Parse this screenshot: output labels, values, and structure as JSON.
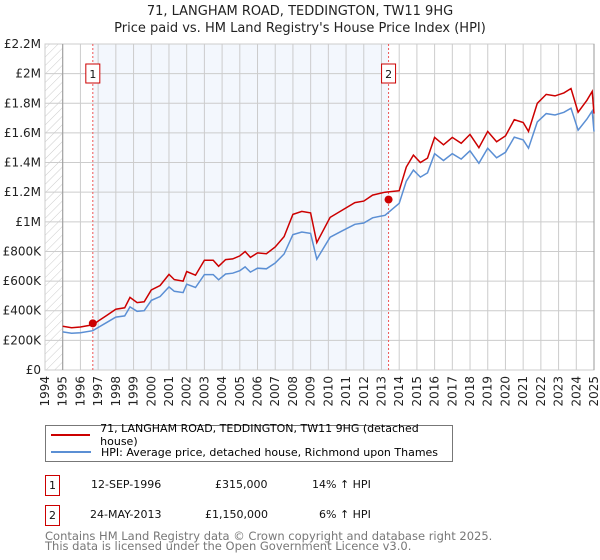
{
  "title": "71, LANGHAM ROAD, TEDDINGTON, TW11 9HG",
  "subtitle": "Price paid vs. HM Land Registry's House Price Index (HPI)",
  "chart_data": {
    "type": "line",
    "ylim": [
      0,
      2200000
    ],
    "xlim": [
      1994,
      2025
    ],
    "yticks": [
      {
        "v": 0,
        "label": "£0"
      },
      {
        "v": 200000,
        "label": "£200K"
      },
      {
        "v": 400000,
        "label": "£400K"
      },
      {
        "v": 600000,
        "label": "£600K"
      },
      {
        "v": 800000,
        "label": "£800K"
      },
      {
        "v": 1000000,
        "label": "£1M"
      },
      {
        "v": 1200000,
        "label": "£1.2M"
      },
      {
        "v": 1400000,
        "label": "£1.4M"
      },
      {
        "v": 1600000,
        "label": "£1.6M"
      },
      {
        "v": 1800000,
        "label": "£1.8M"
      },
      {
        "v": 2000000,
        "label": "£2M"
      },
      {
        "v": 2200000,
        "label": "£2.2M"
      }
    ],
    "xticks": [
      "1994",
      "1995",
      "1996",
      "1997",
      "1998",
      "1999",
      "2000",
      "2001",
      "2002",
      "2003",
      "2004",
      "2005",
      "2006",
      "2007",
      "2008",
      "2009",
      "2010",
      "2011",
      "2012",
      "2013",
      "2014",
      "2015",
      "2016",
      "2017",
      "2018",
      "2019",
      "2020",
      "2021",
      "2022",
      "2023",
      "2024",
      "2025"
    ],
    "grid": true,
    "x": [
      1995,
      1995.5,
      1996,
      1996.7,
      1997,
      1997.5,
      1998,
      1998.5,
      1998.8,
      1999.2,
      1999.6,
      2000,
      2000.5,
      2001,
      2001.3,
      2001.8,
      2002,
      2002.5,
      2003,
      2003.5,
      2003.8,
      2004.2,
      2004.6,
      2005,
      2005.3,
      2005.6,
      2006,
      2006.5,
      2007,
      2007.5,
      2008,
      2008.5,
      2009,
      2009.35,
      2010.1,
      2010.8,
      2011.5,
      2012,
      2012.5,
      2013.2,
      2014,
      2014.4,
      2014.8,
      2015.2,
      2015.6,
      2016,
      2016.5,
      2017,
      2017.5,
      2018,
      2018.5,
      2019,
      2019.5,
      2020,
      2020.5,
      2021,
      2021.3,
      2021.8,
      2022.3,
      2022.8,
      2023.3,
      2023.7,
      2024.1,
      2024.6,
      2024.9,
      2025
    ],
    "series": [
      {
        "name": "71, LANGHAM ROAD, TEDDINGTON, TW11 9HG (detached house)",
        "color": "#cc0000",
        "values": [
          295000,
          285000,
          290000,
          305000,
          330000,
          370000,
          410000,
          420000,
          490000,
          455000,
          460000,
          540000,
          570000,
          645000,
          610000,
          600000,
          665000,
          640000,
          740000,
          740000,
          700000,
          745000,
          750000,
          770000,
          800000,
          760000,
          790000,
          785000,
          830000,
          900000,
          1050000,
          1070000,
          1060000,
          860000,
          1030000,
          1080000,
          1130000,
          1140000,
          1180000,
          1200000,
          1210000,
          1370000,
          1450000,
          1400000,
          1430000,
          1570000,
          1520000,
          1570000,
          1530000,
          1590000,
          1500000,
          1610000,
          1540000,
          1580000,
          1690000,
          1670000,
          1610000,
          1800000,
          1860000,
          1850000,
          1870000,
          1900000,
          1740000,
          1820000,
          1880000,
          1730000
        ]
      },
      {
        "name": "HPI: Average price, detached house, Richmond upon Thames",
        "color": "#5b8fd4",
        "values": [
          257000,
          248000,
          252000,
          265000,
          287000,
          322000,
          357000,
          365000,
          426000,
          396000,
          400000,
          470000,
          496000,
          561000,
          531000,
          522000,
          579000,
          557000,
          644000,
          644000,
          609000,
          648000,
          653000,
          670000,
          696000,
          661000,
          687000,
          683000,
          722000,
          783000,
          914000,
          931000,
          922000,
          748000,
          896000,
          940000,
          983000,
          992000,
          1027000,
          1044000,
          1125000,
          1274000,
          1349000,
          1302000,
          1330000,
          1460000,
          1414000,
          1460000,
          1423000,
          1479000,
          1395000,
          1497000,
          1432000,
          1469000,
          1572000,
          1553000,
          1497000,
          1674000,
          1730000,
          1721000,
          1739000,
          1767000,
          1618000,
          1693000,
          1748000,
          1609000
        ]
      }
    ],
    "sales": [
      {
        "id": "1",
        "x": 1996.7,
        "price": 315000,
        "date": "12-SEP-1996",
        "price_label": "£315,000",
        "hpi": "14% ↑ HPI"
      },
      {
        "id": "2",
        "x": 2013.4,
        "price": 1150000,
        "date": "24-MAY-2013",
        "price_label": "£1,150,000",
        "hpi": "6% ↑ HPI"
      }
    ]
  },
  "footer": {
    "line1": "Contains HM Land Registry data © Crown copyright and database right 2025.",
    "line2": "This data is licensed under the Open Government Licence v3.0."
  }
}
